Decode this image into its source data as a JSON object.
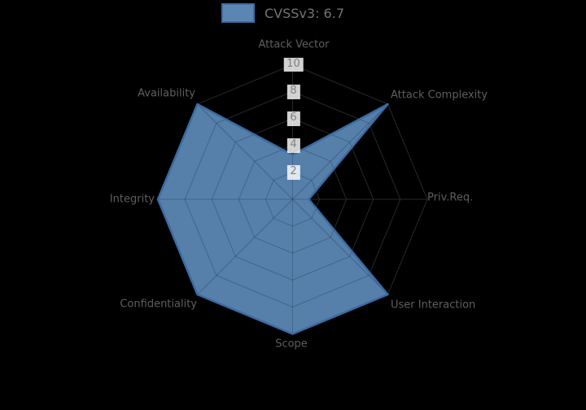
{
  "legend": {
    "label": "CVSSv3: 6.7"
  },
  "chart_data": {
    "type": "radar",
    "title": "CVSSv3: 6.7",
    "axes": [
      {
        "label": "Attack Vector",
        "value": 3.3
      },
      {
        "label": "Attack Complexity",
        "value": 10
      },
      {
        "label": "Priv.Req.",
        "value": 1.2
      },
      {
        "label": "User Interaction",
        "value": 10
      },
      {
        "label": "Scope",
        "value": 10
      },
      {
        "label": "Confidentiality",
        "value": 10
      },
      {
        "label": "Integrity",
        "value": 10
      },
      {
        "label": "Availability",
        "value": 10
      }
    ],
    "radial_ticks": [
      2,
      4,
      6,
      8,
      10
    ],
    "max": 10,
    "axis_start": "top",
    "direction": "clockwise",
    "grid": "on",
    "legend_position": "top-center",
    "colors": {
      "fill": "#5b86b3",
      "outline": "#3a6ba2",
      "web_outer": "#282828",
      "web_inner": "rgba(20,35,60,0.30)",
      "label_text": "#5f5f5f",
      "tick_text": "#7f7f7f",
      "legend_text": "#747474",
      "tick_box": "rgba(255,255,255,0.82)",
      "background": "#000000"
    }
  }
}
